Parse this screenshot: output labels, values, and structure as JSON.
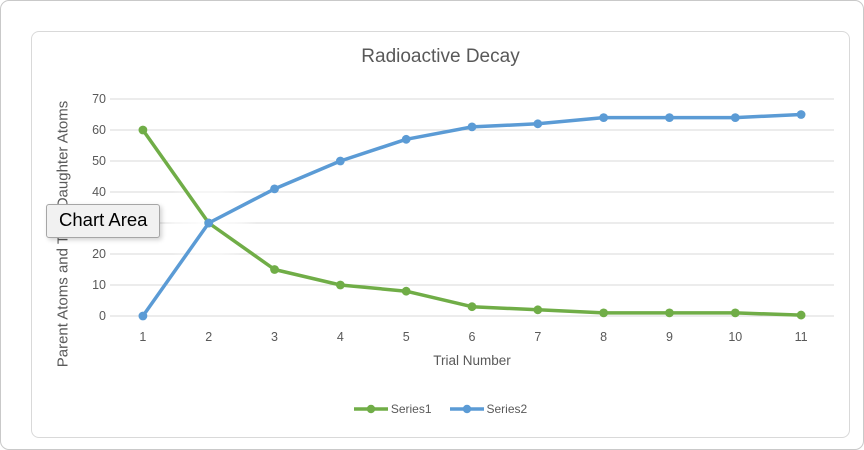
{
  "tooltip": {
    "label": "Chart Area"
  },
  "ui_colors": {
    "text": "#595959",
    "gridline": "#d9d9d9",
    "frame_border": "#d9d9d9",
    "tooltip_bg": "#f1f1f1",
    "tooltip_border": "#a6a6a6"
  },
  "chart_data": {
    "type": "line",
    "title": "Radioactive Decay",
    "xlabel": "Trial Number",
    "ylabel": "Parent Atoms and Total Daughter Atoms",
    "categories": [
      1,
      2,
      3,
      4,
      5,
      6,
      7,
      8,
      9,
      10,
      11
    ],
    "series": [
      {
        "name": "Series1",
        "color": "#70ad47",
        "values": [
          60,
          30,
          15,
          10,
          8,
          3,
          2,
          1,
          1,
          1,
          0.3
        ]
      },
      {
        "name": "Series2",
        "color": "#5b9bd5",
        "values": [
          0,
          30,
          41,
          50,
          57,
          61,
          62,
          64,
          64,
          64,
          65
        ]
      }
    ],
    "ylim": [
      0,
      70
    ],
    "yticks": [
      0,
      10,
      20,
      30,
      40,
      50,
      60,
      70
    ],
    "grid": true,
    "legend_position": "bottom",
    "marker": "circle"
  }
}
